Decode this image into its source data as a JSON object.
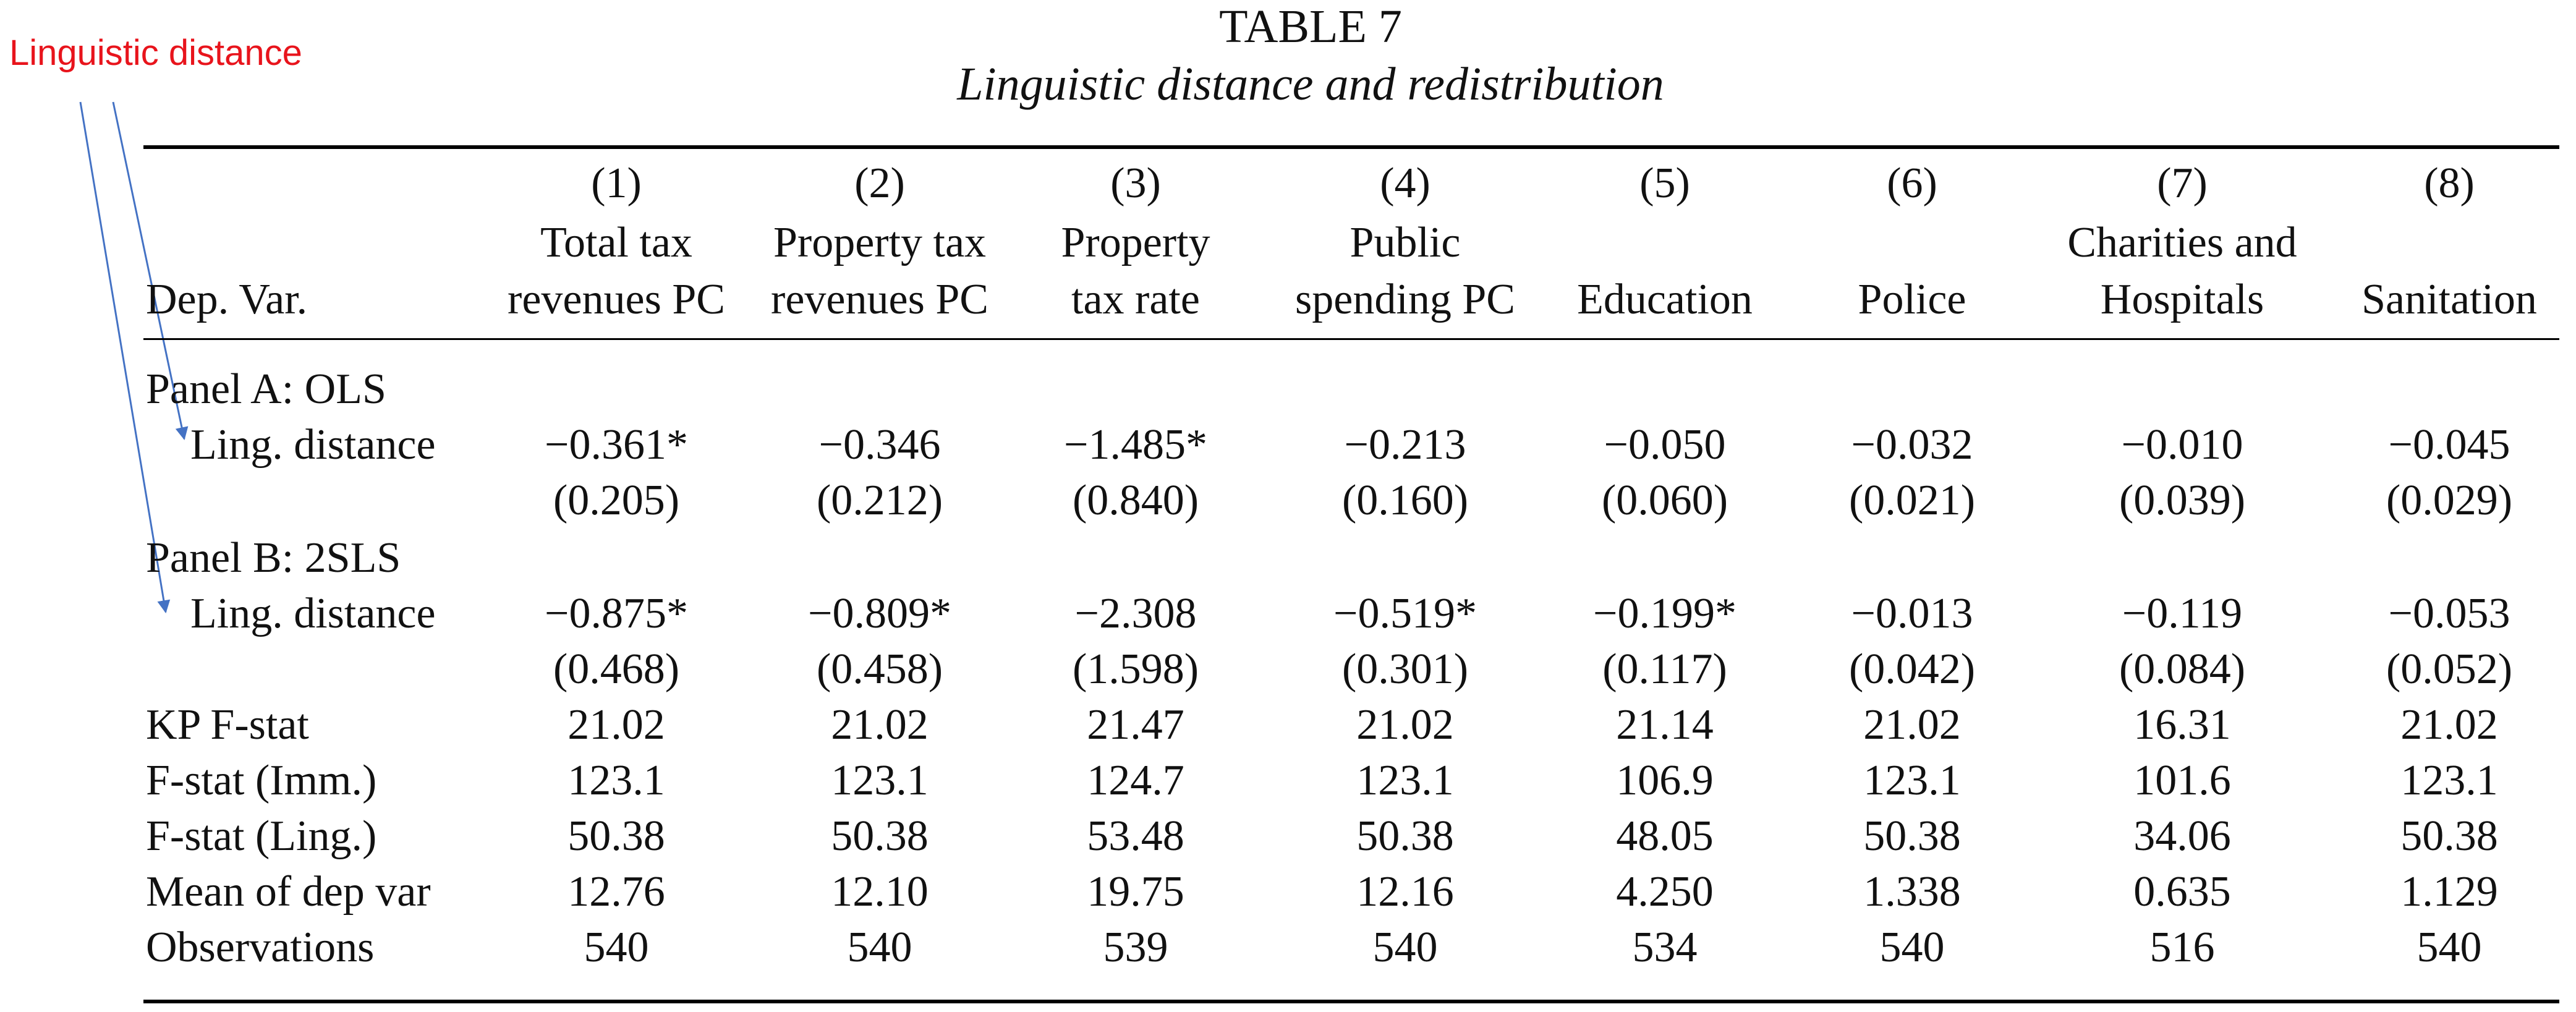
{
  "annotation": {
    "text": "Linguistic distance"
  },
  "table": {
    "title": "TABLE 7",
    "subtitle": "Linguistic distance and redistribution",
    "dep_var_label": "Dep. Var.",
    "columns": [
      {
        "num": "(1)",
        "line1": "Total tax",
        "line2": "revenues PC"
      },
      {
        "num": "(2)",
        "line1": "Property tax",
        "line2": "revenues PC"
      },
      {
        "num": "(3)",
        "line1": "Property",
        "line2": "tax rate"
      },
      {
        "num": "(4)",
        "line1": "Public",
        "line2": "spending PC"
      },
      {
        "num": "(5)",
        "line1": "",
        "line2": "Education"
      },
      {
        "num": "(6)",
        "line1": "",
        "line2": "Police"
      },
      {
        "num": "(7)",
        "line1": "Charities and",
        "line2": "Hospitals"
      },
      {
        "num": "(8)",
        "line1": "",
        "line2": "Sanitation"
      }
    ],
    "panel_a": {
      "label": "Panel A: OLS",
      "row_label": "Ling. distance",
      "coef": [
        "−0.361*",
        "−0.346",
        "−1.485*",
        "−0.213",
        "−0.050",
        "−0.032",
        "−0.010",
        "−0.045"
      ],
      "se": [
        "(0.205)",
        "(0.212)",
        "(0.840)",
        "(0.160)",
        "(0.060)",
        "(0.021)",
        "(0.039)",
        "(0.029)"
      ]
    },
    "panel_b": {
      "label": "Panel B: 2SLS",
      "row_label": "Ling. distance",
      "coef": [
        "−0.875*",
        "−0.809*",
        "−2.308",
        "−0.519*",
        "−0.199*",
        "−0.013",
        "−0.119",
        "−0.053"
      ],
      "se": [
        "(0.468)",
        "(0.458)",
        "(1.598)",
        "(0.301)",
        "(0.117)",
        "(0.042)",
        "(0.084)",
        "(0.052)"
      ]
    },
    "stats": [
      {
        "label": "KP F-stat",
        "values": [
          "21.02",
          "21.02",
          "21.47",
          "21.02",
          "21.14",
          "21.02",
          "16.31",
          "21.02"
        ]
      },
      {
        "label": "F-stat (Imm.)",
        "values": [
          "123.1",
          "123.1",
          "124.7",
          "123.1",
          "106.9",
          "123.1",
          "101.6",
          "123.1"
        ]
      },
      {
        "label": "F-stat (Ling.)",
        "values": [
          "50.38",
          "50.38",
          "53.48",
          "50.38",
          "48.05",
          "50.38",
          "34.06",
          "50.38"
        ]
      },
      {
        "label": "Mean of dep var",
        "values": [
          "12.76",
          "12.10",
          "19.75",
          "12.16",
          "4.250",
          "1.338",
          "0.635",
          "1.129"
        ]
      },
      {
        "label": "Observations",
        "values": [
          "540",
          "540",
          "539",
          "540",
          "534",
          "540",
          "516",
          "540"
        ]
      }
    ]
  },
  "colors": {
    "annotation": "#e8141c",
    "arrow": "#4472c4",
    "text": "#111111"
  }
}
